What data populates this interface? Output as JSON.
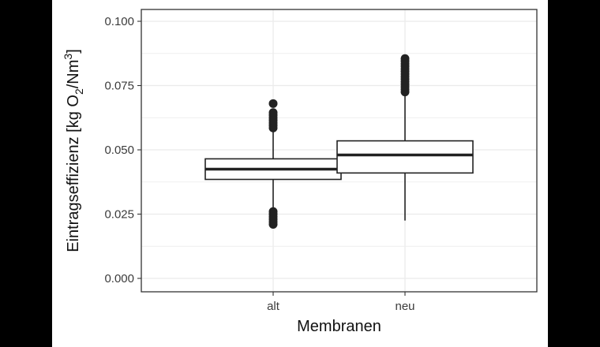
{
  "chart_data": {
    "type": "boxplot",
    "xlabel": "Membranen",
    "ylabel": {
      "main": "Eintragseffizienz [kg O",
      "sub": "2",
      "mid": "/Nm",
      "sup": "3",
      "end": "]"
    },
    "categories": [
      "alt",
      "neu"
    ],
    "ylim": [
      0,
      0.1
    ],
    "yticks": [
      0.0,
      0.025,
      0.05,
      0.075,
      0.1
    ],
    "ytick_labels": [
      "0.000",
      "0.025",
      "0.050",
      "0.075",
      "0.100"
    ],
    "grid": true,
    "boxes": [
      {
        "category": "alt",
        "whisker_low": 0.0265,
        "q1": 0.0385,
        "median": 0.0425,
        "q3": 0.0465,
        "whisker_high": 0.0575,
        "outliers_high": [
          0.0585,
          0.0595,
          0.0605,
          0.0615,
          0.0625,
          0.0635,
          0.0645,
          0.068
        ],
        "outliers_low": [
          0.021,
          0.022,
          0.023,
          0.024,
          0.025,
          0.026
        ]
      },
      {
        "category": "neu",
        "whisker_low": 0.0225,
        "q1": 0.041,
        "median": 0.048,
        "q3": 0.0535,
        "whisker_high": 0.072,
        "outliers_high": [
          0.0725,
          0.0735,
          0.0745,
          0.0755,
          0.0765,
          0.0775,
          0.0785,
          0.0795,
          0.0805,
          0.0815,
          0.0825,
          0.0835,
          0.0845,
          0.0855
        ],
        "outliers_low": []
      }
    ]
  },
  "colors": {
    "background": "#ffffff",
    "panel_border": "#333333",
    "grid": "#ebebeb",
    "box_stroke": "#222222",
    "outlier": "#222222",
    "outer_frame": "#000000"
  }
}
